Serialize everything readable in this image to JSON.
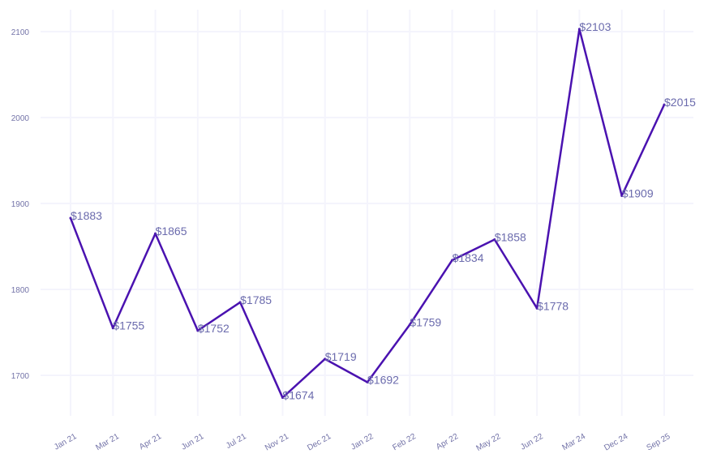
{
  "chart_data": {
    "type": "line",
    "title": "",
    "xlabel": "",
    "ylabel": "",
    "categories": [
      "Jan 21",
      "Mar 21",
      "Apr 21",
      "Jun 21",
      "Jul 21",
      "Nov 21",
      "Dec 21",
      "Jan 22",
      "Feb 22",
      "Apr 22",
      "May 22",
      "Jun 22",
      "Mar 24",
      "Dec 24",
      "Sep 25"
    ],
    "values": [
      1883,
      1755,
      1865,
      1752,
      1785,
      1674,
      1719,
      1692,
      1759,
      1834,
      1858,
      1778,
      2103,
      1909,
      2015
    ],
    "data_labels": [
      "$1883",
      "$1755",
      "$1865",
      "$1752",
      "$1785",
      "$1674",
      "$1719",
      "$1692",
      "$1759",
      "$1834",
      "$1858",
      "$1778",
      "$2103",
      "$1909",
      "$2015"
    ],
    "yticks": [
      1700,
      1800,
      1900,
      2000,
      2100
    ],
    "ylim": [
      1650,
      2125
    ],
    "grid": true,
    "legend": "none",
    "line_color": "#4a12b0",
    "text_color": "#7373a8",
    "grid_color": "#f4f4fc"
  }
}
